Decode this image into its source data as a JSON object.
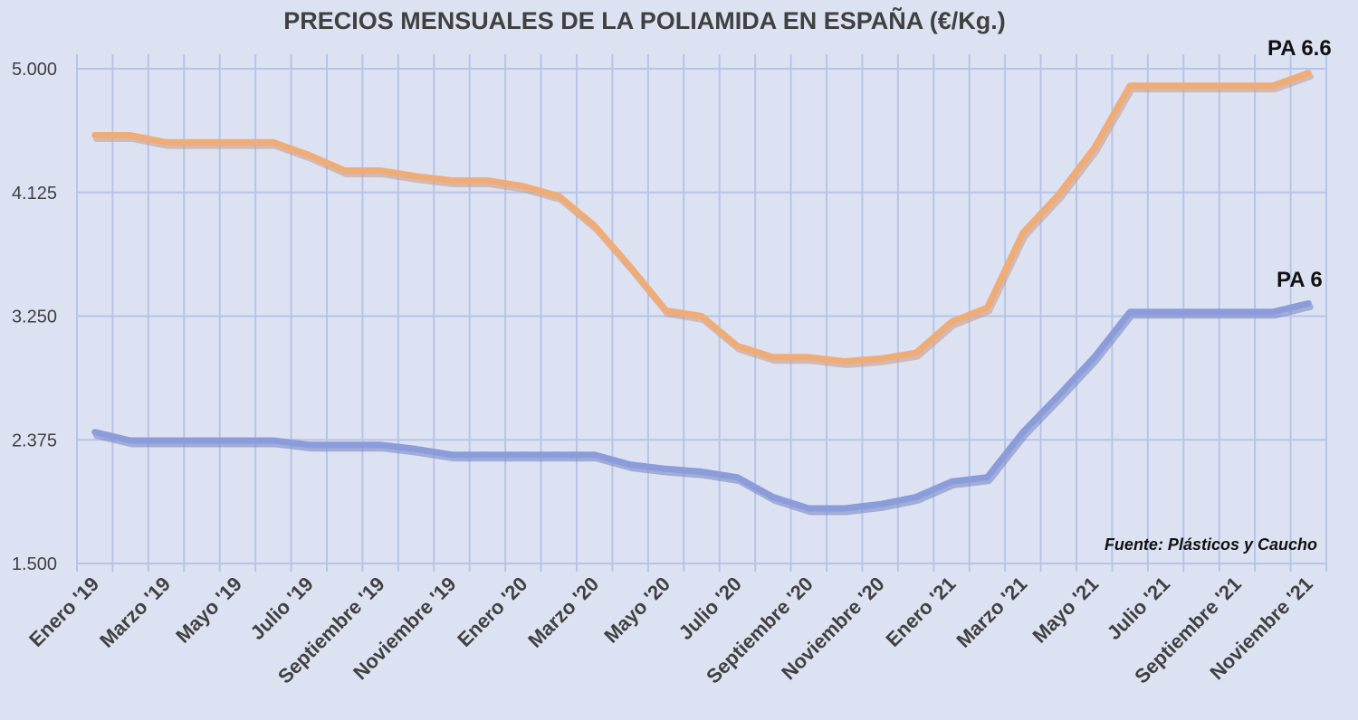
{
  "colors": {
    "background": "#dde2f2",
    "grid": "#b6c4e8"
  },
  "chart_data": {
    "type": "line",
    "title": "PRECIOS MENSUALES DE LA POLIAMIDA EN ESPAÑA (€/Kg.)",
    "categories": [
      "Enero '19",
      "",
      "Marzo '19",
      "",
      "Mayo '19",
      "",
      "Julio '19",
      "",
      "Septiembre '19",
      "",
      "Noviembre '19",
      "",
      "Enero '20",
      "",
      "Marzo '20",
      "",
      "Mayo '20",
      "",
      "Julio '20",
      "",
      "Septiembre '20",
      "",
      "Noviembre '20",
      "",
      "Enero '21",
      "",
      "Marzo '21",
      "",
      "Mayo '21",
      "",
      "Julio '21",
      "",
      "Septiembre '21",
      "",
      "Noviembre '21"
    ],
    "series": [
      {
        "name": "PA 6.6",
        "color": "#f0ac77",
        "shadow_color": "#c99f8c",
        "values": [
          4.53,
          4.53,
          4.48,
          4.48,
          4.48,
          4.48,
          4.39,
          4.28,
          4.28,
          4.24,
          4.21,
          4.21,
          4.17,
          4.1,
          3.89,
          3.6,
          3.29,
          3.25,
          3.04,
          2.96,
          2.96,
          2.93,
          2.95,
          2.99,
          3.21,
          3.31,
          3.84,
          4.11,
          4.44,
          4.88,
          4.88,
          4.88,
          4.88,
          4.88,
          4.97
        ]
      },
      {
        "name": "PA 6",
        "color": "#8b9cdb",
        "shadow_color": "#7a89c4",
        "values": [
          2.43,
          2.37,
          2.37,
          2.37,
          2.37,
          2.37,
          2.34,
          2.34,
          2.34,
          2.31,
          2.27,
          2.27,
          2.27,
          2.27,
          2.27,
          2.2,
          2.17,
          2.15,
          2.11,
          1.97,
          1.89,
          1.89,
          1.92,
          1.97,
          2.08,
          2.11,
          2.43,
          2.69,
          2.96,
          3.28,
          3.28,
          3.28,
          3.28,
          3.28,
          3.34
        ]
      }
    ],
    "ylim": [
      1.5,
      5.0
    ],
    "yticks": [
      1.5,
      2.375,
      3.25,
      4.125,
      5.0
    ],
    "ytick_labels": [
      "1.500",
      "2.375",
      "3.250",
      "4.125",
      "5.000"
    ],
    "grid": {
      "horizontal": true,
      "vertical": true
    },
    "source": "Fuente: Plásticos y Caucho"
  }
}
